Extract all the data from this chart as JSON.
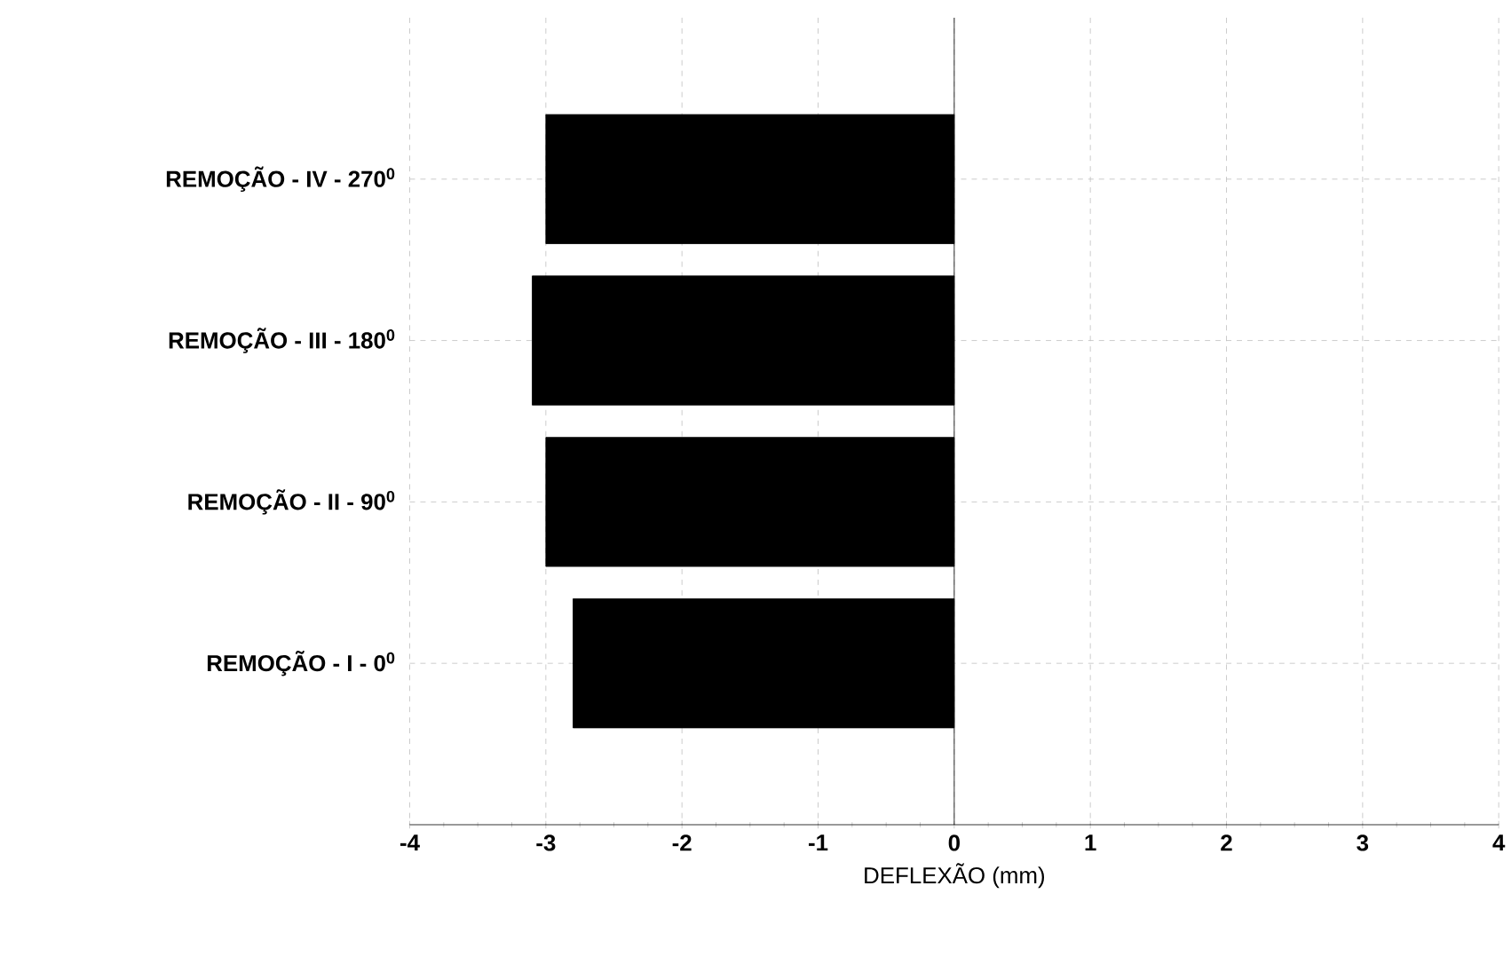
{
  "chart_data": {
    "type": "bar",
    "orientation": "horizontal",
    "categories": [
      "REMOÇÃO - IV - 270$^{0}$",
      "REMOÇÃO - III - 180$^{0}$",
      "REMOÇÃO - II - 90$^{0}$",
      "REMOÇÃO - I - 0$^{0}$"
    ],
    "values": [
      -3.0,
      -3.1,
      -3.0,
      -2.8
    ],
    "color": "#000000",
    "xlim": [
      -4,
      4
    ],
    "xticks": [
      -4,
      -3,
      -2,
      -1,
      0,
      1,
      2,
      3,
      4
    ],
    "xlabel": "DEFLEXÃO (mm)",
    "grid": true
  }
}
